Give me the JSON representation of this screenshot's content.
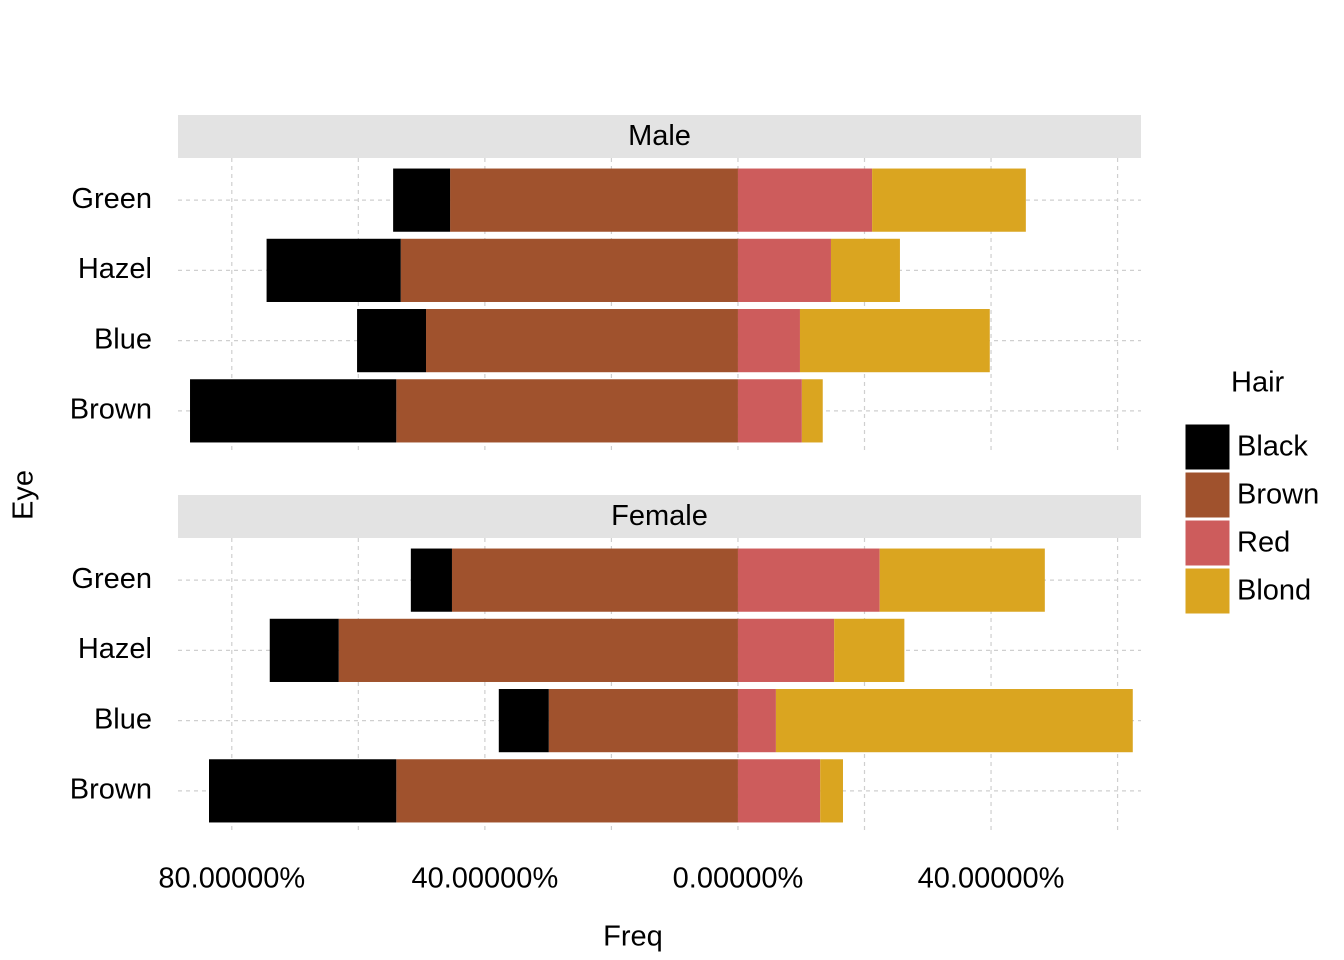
{
  "chart_data": {
    "type": "bar",
    "orientation": "horizontal",
    "stacked": true,
    "x_label": "Freq",
    "y_label": "Eye",
    "legend_title": "Hair",
    "categories": [
      "Green",
      "Hazel",
      "Blue",
      "Brown"
    ],
    "xlim": [
      -88.5,
      63.7
    ],
    "xticks": [
      {
        "value": -80,
        "label": "80.00000%"
      },
      {
        "value": -40,
        "label": "40.00000%"
      },
      {
        "value": 0,
        "label": "0.00000%"
      },
      {
        "value": 40,
        "label": "40.00000%"
      }
    ],
    "minor_xticks": [
      -60,
      -20,
      20,
      60
    ],
    "grid": true,
    "facets": [
      {
        "title": "Male",
        "series": [
          {
            "name": "Black",
            "color": "#000000",
            "values": [
              -9.0,
              -21.2,
              -10.9,
              -32.6
            ]
          },
          {
            "name": "Brown",
            "color": "#a0522d",
            "values": [
              -45.5,
              -53.3,
              -49.3,
              -54.0
            ]
          },
          {
            "name": "Red",
            "color": "#cd5c5c",
            "values": [
              21.2,
              14.7,
              9.8,
              10.1
            ]
          },
          {
            "name": "Blond",
            "color": "#daa520",
            "values": [
              24.3,
              10.9,
              30.0,
              3.3
            ]
          }
        ]
      },
      {
        "title": "Female",
        "series": [
          {
            "name": "Black",
            "color": "#000000",
            "values": [
              -6.5,
              -10.9,
              -7.9,
              -29.6
            ]
          },
          {
            "name": "Brown",
            "color": "#a0522d",
            "values": [
              -45.2,
              -63.1,
              -29.9,
              -54.0
            ]
          },
          {
            "name": "Red",
            "color": "#cd5c5c",
            "values": [
              22.4,
              15.2,
              6.0,
              13.0
            ]
          },
          {
            "name": "Blond",
            "color": "#daa520",
            "values": [
              26.1,
              11.1,
              56.4,
              3.6
            ]
          }
        ]
      }
    ]
  }
}
